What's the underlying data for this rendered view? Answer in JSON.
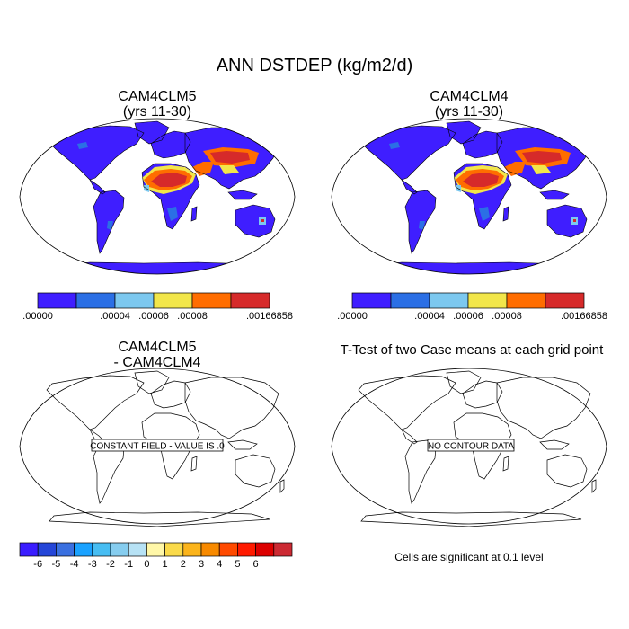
{
  "title": "ANN DSTDEP (kg/m2/d)",
  "panels": {
    "top_left": {
      "title_line1": "CAM4CLM5",
      "title_line2": "(yrs 11-30)"
    },
    "top_right": {
      "title_line1": "CAM4CLM4",
      "title_line2": "(yrs 11-30)"
    },
    "bottom_left": {
      "title_line1": "CAM4CLM5",
      "title_line2": "- CAM4CLM4",
      "message": "CONSTANT FIELD - VALUE IS .0"
    },
    "bottom_right": {
      "title_line1": "T-Test of two Case means at each grid point",
      "message": "NO CONTOUR DATA",
      "note": "Cells are significant at 0.1 level"
    }
  },
  "colorbars": {
    "field": {
      "colors": [
        "#3f1eff",
        "#2b6fe5",
        "#7cc8ef",
        "#f2e64a",
        "#ff6d00",
        "#d62a2a"
      ],
      "labels": [
        ".00000",
        "",
        ".00004",
        ".00006",
        ".00008",
        ".00166858"
      ]
    },
    "difference": {
      "colors": [
        "#3a1dff",
        "#2546d8",
        "#3a70e0",
        "#1aa2ff",
        "#47bdf2",
        "#86cdef",
        "#b7e2f5",
        "#fff7a8",
        "#fada4a",
        "#fbb41b",
        "#f88a00",
        "#ff4a00",
        "#ff1a00",
        "#dc0000",
        "#cc2a33"
      ],
      "labels": [
        "-6",
        "-5",
        "-4",
        "-3",
        "-2",
        "-1",
        "0",
        "1",
        "2",
        "3",
        "4",
        "5",
        "6"
      ]
    }
  }
}
